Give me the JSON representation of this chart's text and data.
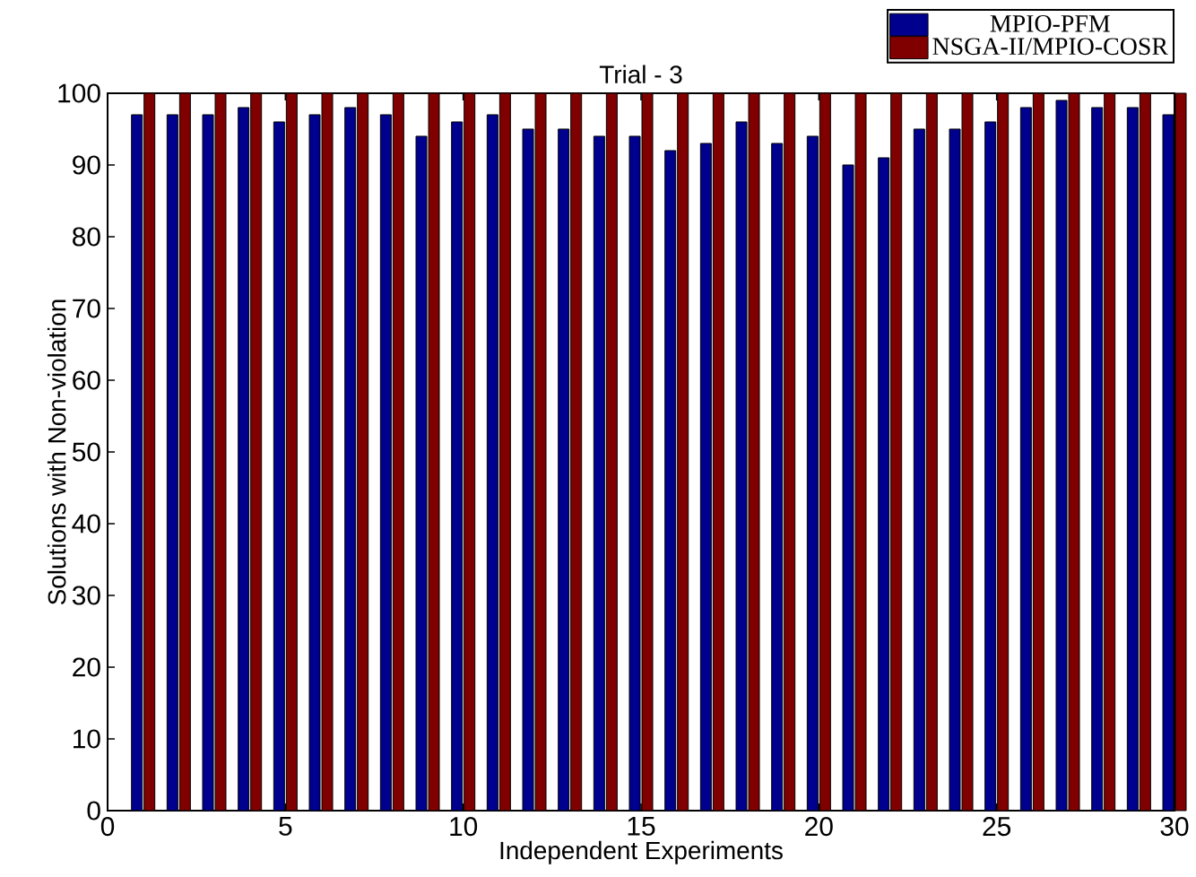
{
  "chart_data": {
    "type": "bar",
    "title": "Trial - 3",
    "xlabel": "Independent Experiments",
    "ylabel": "Solutions with Non-violation",
    "x": [
      1,
      2,
      3,
      4,
      5,
      6,
      7,
      8,
      9,
      10,
      11,
      12,
      13,
      14,
      15,
      16,
      17,
      18,
      19,
      20,
      21,
      22,
      23,
      24,
      25,
      26,
      27,
      28,
      29,
      30
    ],
    "series": [
      {
        "name": "MPIO-PFM",
        "color": "#00008f",
        "values": [
          97,
          97,
          97,
          98,
          96,
          97,
          98,
          97,
          94,
          96,
          97,
          95,
          95,
          94,
          94,
          92,
          93,
          96,
          93,
          94,
          90,
          91,
          95,
          95,
          96,
          98,
          99,
          98,
          98,
          97
        ]
      },
      {
        "name": "NSGA-II/MPIO-COSR",
        "color": "#800000",
        "values": [
          100,
          100,
          100,
          100,
          100,
          100,
          100,
          100,
          100,
          100,
          100,
          100,
          100,
          100,
          100,
          100,
          100,
          100,
          100,
          100,
          100,
          100,
          100,
          100,
          100,
          100,
          100,
          100,
          100,
          100
        ]
      }
    ],
    "xlim": [
      0,
      30
    ],
    "ylim": [
      0,
      100
    ],
    "xticks": [
      0,
      5,
      10,
      15,
      20,
      25,
      30
    ],
    "yticks": [
      0,
      10,
      20,
      30,
      40,
      50,
      60,
      70,
      80,
      90,
      100
    ],
    "legend": "top right"
  }
}
